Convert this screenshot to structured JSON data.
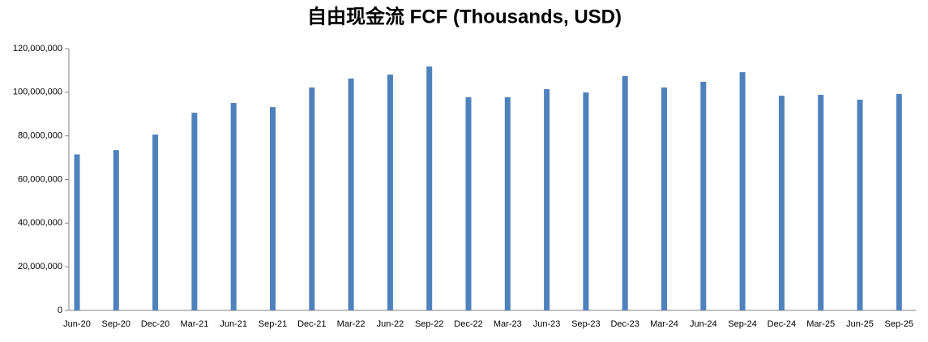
{
  "chart_data": {
    "type": "bar",
    "title": "自由现金流 FCF (Thousands, USD)",
    "categories": [
      "Jun-20",
      "Sep-20",
      "Dec-20",
      "Mar-21",
      "Jun-21",
      "Sep-21",
      "Dec-21",
      "Mar-22",
      "Jun-22",
      "Sep-22",
      "Dec-22",
      "Mar-23",
      "Jun-23",
      "Sep-23",
      "Dec-23",
      "Mar-24",
      "Jun-24",
      "Sep-24",
      "Dec-24",
      "Mar-25",
      "Jun-25",
      "Sep-25"
    ],
    "values": [
      71500000,
      73500000,
      80600000,
      90600000,
      95100000,
      93200000,
      102200000,
      106300000,
      108100000,
      111800000,
      97700000,
      97700000,
      101400000,
      99900000,
      107400000,
      102200000,
      104800000,
      109200000,
      98400000,
      98800000,
      96600000,
      99200000
    ],
    "color": "#4f81bd",
    "ylim": [
      0,
      120000000
    ],
    "yticks": [
      0,
      {
        "value": 20000000,
        "label": "20,000,000"
      },
      {
        "value": 40000000,
        "label": "40,000,000"
      },
      {
        "value": 60000000,
        "label": "60,000,000"
      },
      {
        "value": 80000000,
        "label": "80,000,000"
      },
      {
        "value": 100000000,
        "label": "100,000,000"
      },
      {
        "value": 120000000,
        "label": "120,000,000"
      }
    ]
  }
}
